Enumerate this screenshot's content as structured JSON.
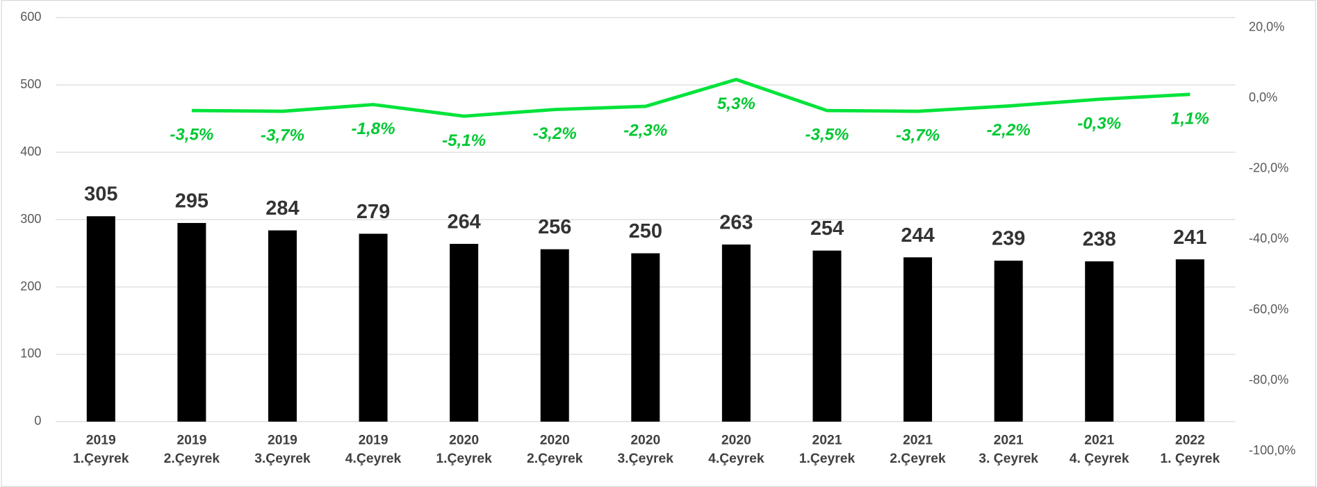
{
  "chart_data": {
    "type": "bar",
    "categories": [
      [
        "2019",
        "1.Çeyrek"
      ],
      [
        "2019",
        "2.Çeyrek"
      ],
      [
        "2019",
        "3.Çeyrek"
      ],
      [
        "2019",
        "4.Çeyrek"
      ],
      [
        "2020",
        "1.Çeyrek"
      ],
      [
        "2020",
        "2.Çeyrek"
      ],
      [
        "2020",
        "3.Çeyrek"
      ],
      [
        "2020",
        "4.Çeyrek"
      ],
      [
        "2021",
        "1.Çeyrek"
      ],
      [
        "2021",
        "2.Çeyrek"
      ],
      [
        "2021",
        "3. Çeyrek"
      ],
      [
        "2021",
        "4. Çeyrek"
      ],
      [
        "2022",
        "1. Çeyrek"
      ]
    ],
    "series": [
      {
        "type": "bar",
        "color": "#000000",
        "values": [
          305,
          295,
          284,
          279,
          264,
          256,
          250,
          263,
          254,
          244,
          239,
          238,
          241
        ]
      },
      {
        "type": "line",
        "axis": "y2",
        "color": "#00e33a",
        "values": [
          null,
          -3.5,
          -3.7,
          -1.8,
          -5.1,
          -3.2,
          -2.3,
          5.3,
          -3.5,
          -3.7,
          -2.2,
          -0.3,
          1.1
        ],
        "value_labels": [
          null,
          "-3,5%",
          "-3,7%",
          "-1,8%",
          "-5,1%",
          "-3,2%",
          "-2,3%",
          "5,3%",
          "-3,5%",
          "-3,7%",
          "-2,2%",
          "-0,3%",
          "1,1%"
        ]
      }
    ],
    "ylim": [
      0,
      600
    ],
    "yticks": [
      0,
      100,
      200,
      300,
      400,
      500,
      600
    ],
    "y2lim": [
      -100,
      20
    ],
    "y2ticks": [
      {
        "value": 20,
        "label": "20,0%"
      },
      {
        "value": 0,
        "label": "0,0%"
      },
      {
        "value": -20,
        "label": "-20,0%"
      },
      {
        "value": -40,
        "label": "-40,0%"
      },
      {
        "value": -60,
        "label": "-60,0%"
      },
      {
        "value": -80,
        "label": "-80,0%"
      },
      {
        "value": -100,
        "label": "-100,0%"
      }
    ],
    "grid": true
  }
}
